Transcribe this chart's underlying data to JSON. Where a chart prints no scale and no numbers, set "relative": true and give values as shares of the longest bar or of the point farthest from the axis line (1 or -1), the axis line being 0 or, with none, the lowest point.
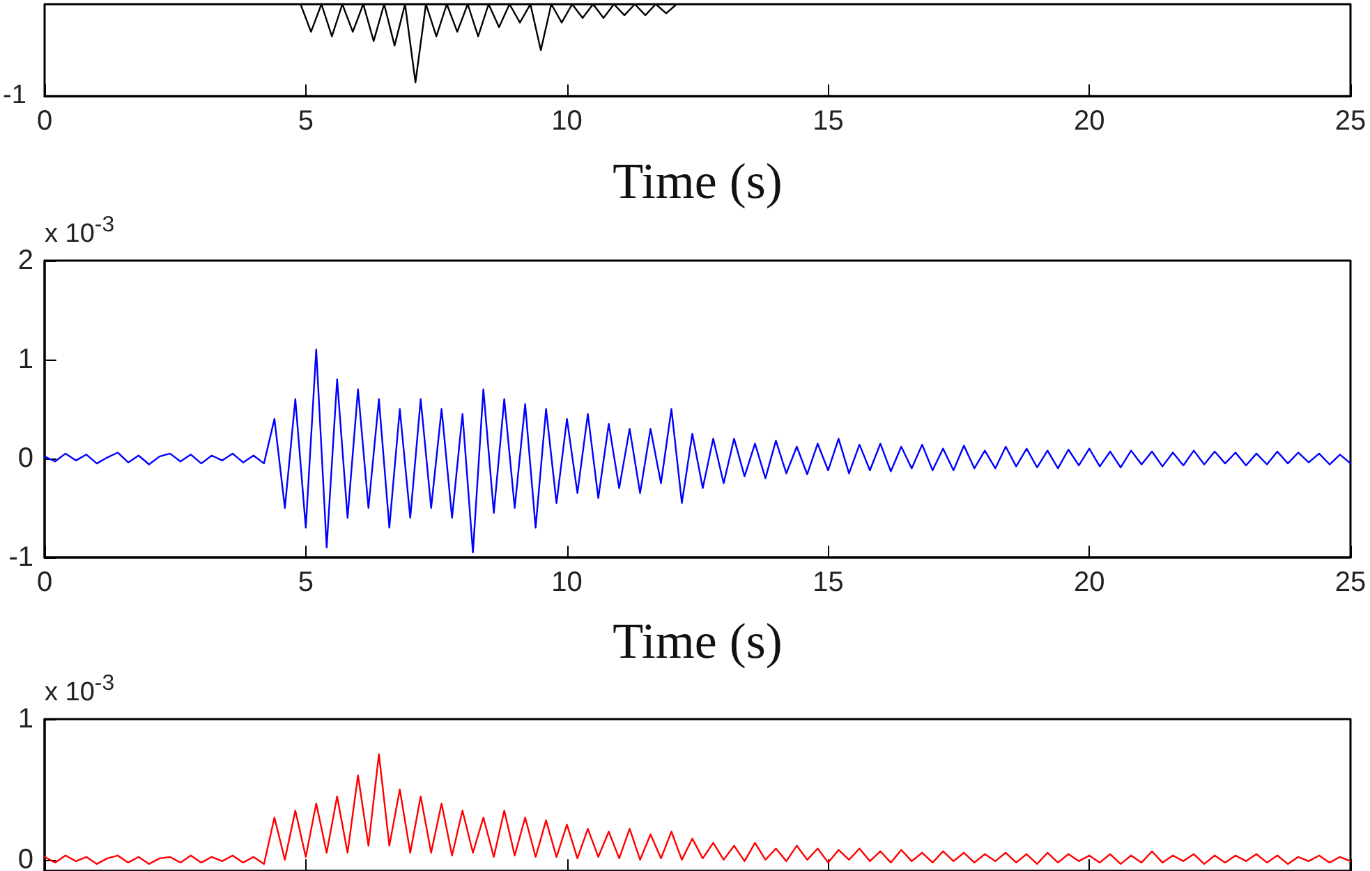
{
  "chart_data": [
    {
      "type": "line",
      "xlabel": "Time (s)",
      "annotations": [
        "-1"
      ],
      "relative": true,
      "xlim": [
        0,
        25
      ],
      "xticks": [
        0,
        5,
        10,
        15,
        20,
        25
      ],
      "grid": false,
      "series": [
        {
          "color": "#000000",
          "x": [
            4.9,
            5.1,
            5.3,
            5.5,
            5.7,
            5.9,
            6.1,
            6.3,
            6.5,
            6.7,
            6.9,
            7.1,
            7.3,
            7.5,
            7.7,
            7.9,
            8.1,
            8.3,
            8.5,
            8.7,
            8.9,
            9.1,
            9.3,
            9.5,
            9.7,
            9.9,
            10.1,
            10.3,
            10.5,
            10.7,
            10.9,
            11.1,
            11.3,
            11.5,
            11.7,
            11.9,
            12.1
          ],
          "values": [
            1,
            0.7,
            1,
            0.65,
            1,
            0.7,
            1,
            0.6,
            1,
            0.55,
            1,
            0.15,
            1,
            0.65,
            1,
            0.7,
            1,
            0.65,
            1,
            0.75,
            1,
            0.8,
            1,
            0.5,
            1,
            0.8,
            1,
            0.85,
            1,
            0.85,
            1,
            0.88,
            1,
            0.88,
            1,
            0.9,
            1
          ]
        }
      ]
    },
    {
      "type": "line",
      "xlabel": "Time (s)",
      "annotations": [
        "x 10$^{-3}$"
      ],
      "xlim": [
        0,
        25
      ],
      "xticks": [
        0,
        5,
        10,
        15,
        20,
        25
      ],
      "ylim": [
        -1,
        2
      ],
      "yticks": [
        -1,
        0,
        1,
        2
      ],
      "grid": false,
      "x": [
        0,
        0.2,
        0.4,
        0.6,
        0.8,
        1,
        1.2,
        1.4,
        1.6,
        1.8,
        2,
        2.2,
        2.4,
        2.6,
        2.8,
        3,
        3.2,
        3.4,
        3.6,
        3.8,
        4,
        4.2,
        4.4,
        4.6,
        4.8,
        5,
        5.2,
        5.4,
        5.6,
        5.8,
        6,
        6.2,
        6.4,
        6.6,
        6.8,
        7,
        7.2,
        7.4,
        7.6,
        7.8,
        8,
        8.2,
        8.4,
        8.6,
        8.8,
        9,
        9.2,
        9.4,
        9.6,
        9.8,
        10,
        10.2,
        10.4,
        10.6,
        10.8,
        11,
        11.2,
        11.4,
        11.6,
        11.8,
        12,
        12.2,
        12.4,
        12.6,
        12.8,
        13,
        13.2,
        13.4,
        13.6,
        13.8,
        14,
        14.2,
        14.4,
        14.6,
        14.8,
        15,
        15.2,
        15.4,
        15.6,
        15.8,
        16,
        16.2,
        16.4,
        16.6,
        16.8,
        17,
        17.2,
        17.4,
        17.6,
        17.8,
        18,
        18.2,
        18.4,
        18.6,
        18.8,
        19,
        19.2,
        19.4,
        19.6,
        19.8,
        20,
        20.2,
        20.4,
        20.6,
        20.8,
        21,
        21.2,
        21.4,
        21.6,
        21.8,
        22,
        22.2,
        22.4,
        22.6,
        22.8,
        23,
        23.2,
        23.4,
        23.6,
        23.8,
        24,
        24.2,
        24.4,
        24.6,
        24.8,
        25
      ],
      "series": [
        {
          "color": "#0000ff",
          "values": [
            0.02,
            -0.03,
            0.05,
            -0.02,
            0.04,
            -0.05,
            0.01,
            0.06,
            -0.04,
            0.03,
            -0.06,
            0.02,
            0.05,
            -0.03,
            0.04,
            -0.05,
            0.03,
            -0.02,
            0.05,
            -0.04,
            0.03,
            -0.05,
            0.4,
            -0.5,
            0.6,
            -0.7,
            1.1,
            -0.9,
            0.8,
            -0.6,
            0.7,
            -0.5,
            0.6,
            -0.7,
            0.5,
            -0.6,
            0.6,
            -0.5,
            0.5,
            -0.6,
            0.45,
            -0.95,
            0.7,
            -0.55,
            0.6,
            -0.5,
            0.55,
            -0.7,
            0.5,
            -0.45,
            0.4,
            -0.35,
            0.45,
            -0.4,
            0.35,
            -0.3,
            0.3,
            -0.35,
            0.3,
            -0.25,
            0.5,
            -0.45,
            0.25,
            -0.3,
            0.2,
            -0.25,
            0.2,
            -0.18,
            0.15,
            -0.2,
            0.18,
            -0.15,
            0.12,
            -0.16,
            0.15,
            -0.12,
            0.2,
            -0.15,
            0.14,
            -0.12,
            0.15,
            -0.13,
            0.12,
            -0.1,
            0.14,
            -0.12,
            0.1,
            -0.12,
            0.13,
            -0.1,
            0.08,
            -0.1,
            0.12,
            -0.08,
            0.1,
            -0.09,
            0.08,
            -0.1,
            0.09,
            -0.07,
            0.1,
            -0.08,
            0.07,
            -0.09,
            0.08,
            -0.06,
            0.07,
            -0.08,
            0.06,
            -0.07,
            0.08,
            -0.06,
            0.07,
            -0.05,
            0.06,
            -0.07,
            0.05,
            -0.06,
            0.07,
            -0.05,
            0.06,
            -0.04,
            0.05,
            -0.06,
            0.04,
            -0.05
          ]
        }
      ]
    },
    {
      "type": "line",
      "annotations": [
        "x 10$^{-3}$"
      ],
      "xlim": [
        0,
        25
      ],
      "xticks": [
        0,
        5,
        10,
        15,
        20,
        25
      ],
      "ylim": [
        -0.08,
        1
      ],
      "yticks": [
        0,
        1
      ],
      "tick_labels": "y",
      "grid": false,
      "x": [
        0,
        0.2,
        0.4,
        0.6,
        0.8,
        1,
        1.2,
        1.4,
        1.6,
        1.8,
        2,
        2.2,
        2.4,
        2.6,
        2.8,
        3,
        3.2,
        3.4,
        3.6,
        3.8,
        4,
        4.2,
        4.4,
        4.6,
        4.8,
        5,
        5.2,
        5.4,
        5.6,
        5.8,
        6,
        6.2,
        6.4,
        6.6,
        6.8,
        7,
        7.2,
        7.4,
        7.6,
        7.8,
        8,
        8.2,
        8.4,
        8.6,
        8.8,
        9,
        9.2,
        9.4,
        9.6,
        9.8,
        10,
        10.2,
        10.4,
        10.6,
        10.8,
        11,
        11.2,
        11.4,
        11.6,
        11.8,
        12,
        12.2,
        12.4,
        12.6,
        12.8,
        13,
        13.2,
        13.4,
        13.6,
        13.8,
        14,
        14.2,
        14.4,
        14.6,
        14.8,
        15,
        15.2,
        15.4,
        15.6,
        15.8,
        16,
        16.2,
        16.4,
        16.6,
        16.8,
        17,
        17.2,
        17.4,
        17.6,
        17.8,
        18,
        18.2,
        18.4,
        18.6,
        18.8,
        19,
        19.2,
        19.4,
        19.6,
        19.8,
        20,
        20.2,
        20.4,
        20.6,
        20.8,
        21,
        21.2,
        21.4,
        21.6,
        21.8,
        22,
        22.2,
        22.4,
        22.6,
        22.8,
        23,
        23.2,
        23.4,
        23.6,
        23.8,
        24,
        24.2,
        24.4,
        24.6,
        24.8,
        25
      ],
      "series": [
        {
          "color": "#ff0000",
          "values": [
            0.02,
            -0.02,
            0.03,
            -0.01,
            0.02,
            -0.03,
            0.01,
            0.03,
            -0.02,
            0.02,
            -0.03,
            0.01,
            0.02,
            -0.02,
            0.03,
            -0.02,
            0.02,
            -0.01,
            0.03,
            -0.02,
            0.02,
            -0.03,
            0.3,
            0.0,
            0.35,
            0.02,
            0.4,
            0.05,
            0.45,
            0.05,
            0.6,
            0.1,
            0.75,
            0.1,
            0.5,
            0.05,
            0.45,
            0.05,
            0.4,
            0.03,
            0.35,
            0.05,
            0.3,
            0.02,
            0.35,
            0.03,
            0.3,
            0.02,
            0.28,
            0.02,
            0.25,
            0.01,
            0.22,
            0.02,
            0.2,
            0.01,
            0.22,
            0.0,
            0.18,
            0.01,
            0.2,
            0.0,
            0.15,
            0.01,
            0.12,
            0.0,
            0.1,
            -0.01,
            0.12,
            0.0,
            0.08,
            -0.01,
            0.1,
            0.0,
            0.08,
            -0.02,
            0.07,
            0.0,
            0.08,
            -0.01,
            0.06,
            -0.02,
            0.07,
            -0.01,
            0.05,
            -0.02,
            0.06,
            -0.01,
            0.05,
            -0.02,
            0.04,
            -0.01,
            0.05,
            -0.02,
            0.04,
            -0.03,
            0.05,
            -0.02,
            0.04,
            -0.01,
            0.03,
            -0.02,
            0.04,
            -0.03,
            0.03,
            -0.02,
            0.06,
            -0.02,
            0.03,
            -0.01,
            0.04,
            -0.03,
            0.03,
            -0.02,
            0.03,
            -0.01,
            0.04,
            -0.02,
            0.03,
            -0.03,
            0.02,
            -0.01,
            0.03,
            -0.02,
            0.02,
            -0.01
          ]
        }
      ]
    }
  ]
}
